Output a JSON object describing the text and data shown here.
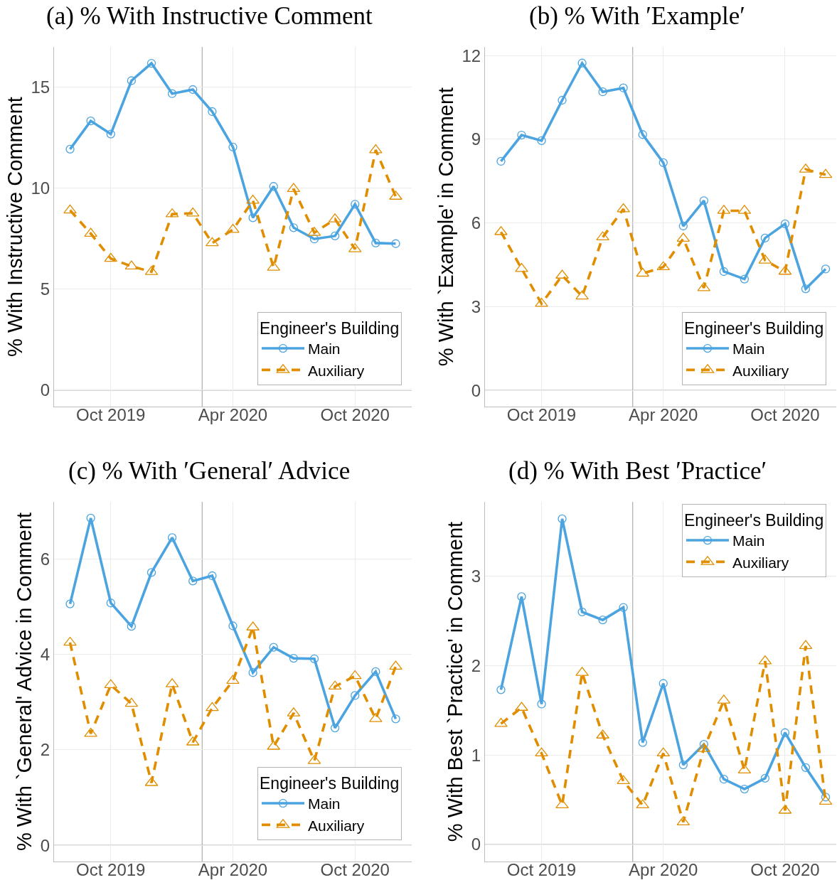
{
  "chart_data": [
    {
      "type": "line",
      "title": "(a) % With Instructive Comment",
      "ylabel": "% With Instructive Comment",
      "legend_title": "Engineer's Building",
      "legend": "bottom right",
      "grid": true,
      "x": [
        "2019-08",
        "2019-09",
        "2019-10",
        "2019-11",
        "2019-12",
        "2020-01",
        "2020-02",
        "2020-03",
        "2020-04",
        "2020-05",
        "2020-06",
        "2020-07",
        "2020-08",
        "2020-09",
        "2020-10",
        "2020-11",
        "2020-12"
      ],
      "series": [
        {
          "name": "Main",
          "color": "#4ba4e0",
          "marker": "circle",
          "line_style": "solid",
          "values": [
            11.92,
            13.32,
            12.67,
            15.31,
            16.17,
            14.67,
            14.87,
            13.78,
            12.03,
            8.53,
            10.08,
            8.04,
            7.48,
            7.63,
            9.2,
            7.28,
            7.25
          ]
        },
        {
          "name": "Auxiliary",
          "color": "#e08e00",
          "marker": "triangle",
          "line_style": "dashed",
          "values": [
            8.9,
            7.75,
            6.51,
            6.13,
            5.86,
            8.71,
            8.75,
            7.28,
            7.94,
            9.38,
            6.07,
            9.96,
            7.79,
            8.46,
            6.98,
            11.88,
            9.58
          ]
        }
      ],
      "xlim": [
        "2019-07-08",
        "2020-12-25"
      ],
      "xticks": [
        {
          "value": "2019-10",
          "label": "Oct 2019"
        },
        {
          "value": "2020-04",
          "label": "Apr 2020"
        },
        {
          "value": "2020-10",
          "label": "Oct 2020"
        }
      ],
      "ylim": [
        -0.81,
        16.98
      ],
      "yticks": [
        0,
        5,
        10,
        15
      ],
      "ref_lines": [
        {
          "axis": "x",
          "value": "2020-02-15",
          "color": "#b3b3b3"
        },
        {
          "axis": "y",
          "value": 0,
          "color": "#b3b3b3"
        }
      ]
    },
    {
      "type": "line",
      "title": "(b) % With ′Example′",
      "ylabel": "% With `Example' in Comment",
      "legend_title": "Engineer's Building",
      "legend": "bottom right",
      "grid": true,
      "x": [
        "2019-08",
        "2019-09",
        "2019-10",
        "2019-11",
        "2019-12",
        "2020-01",
        "2020-02",
        "2020-03",
        "2020-04",
        "2020-05",
        "2020-06",
        "2020-07",
        "2020-08",
        "2020-09",
        "2020-10",
        "2020-11",
        "2020-12"
      ],
      "series": [
        {
          "name": "Main",
          "color": "#4ba4e0",
          "marker": "circle",
          "line_style": "solid",
          "values": [
            8.21,
            9.15,
            8.95,
            10.4,
            11.73,
            10.7,
            10.84,
            9.17,
            8.16,
            5.89,
            6.8,
            4.26,
            3.99,
            5.46,
            5.97,
            3.64,
            4.35
          ]
        },
        {
          "name": "Auxiliary",
          "color": "#e08e00",
          "marker": "triangle",
          "line_style": "dashed",
          "values": [
            5.68,
            4.36,
            3.11,
            4.12,
            3.37,
            5.49,
            6.5,
            4.19,
            4.42,
            5.44,
            3.67,
            6.44,
            6.44,
            4.66,
            4.26,
            7.92,
            7.73
          ]
        }
      ],
      "xlim": [
        "2019-07-08",
        "2020-12-17"
      ],
      "xticks": [
        {
          "value": "2019-10",
          "label": "Oct 2019"
        },
        {
          "value": "2020-04",
          "label": "Apr 2020"
        },
        {
          "value": "2020-10",
          "label": "Oct 2020"
        }
      ],
      "ylim": [
        -0.58,
        12.31
      ],
      "yticks": [
        0,
        3,
        6,
        9,
        12
      ],
      "ref_lines": [
        {
          "axis": "x",
          "value": "2020-02-15",
          "color": "#b3b3b3"
        },
        {
          "axis": "y",
          "value": 0,
          "color": "#b3b3b3"
        }
      ]
    },
    {
      "type": "line",
      "title": "(c) % With ′General′ Advice",
      "ylabel": "% With `General' Advice in Comment",
      "legend_title": "Engineer's Building",
      "legend": "bottom right",
      "grid": true,
      "x": [
        "2019-08",
        "2019-09",
        "2019-10",
        "2019-11",
        "2019-12",
        "2020-01",
        "2020-02",
        "2020-03",
        "2020-04",
        "2020-05",
        "2020-06",
        "2020-07",
        "2020-08",
        "2020-09",
        "2020-10",
        "2020-11",
        "2020-12"
      ],
      "series": [
        {
          "name": "Main",
          "color": "#4ba4e0",
          "marker": "circle",
          "line_style": "solid",
          "values": [
            5.06,
            6.86,
            5.08,
            4.59,
            5.72,
            6.45,
            5.54,
            5.65,
            4.6,
            3.62,
            4.15,
            3.92,
            3.91,
            2.46,
            3.14,
            3.64,
            2.65
          ]
        },
        {
          "name": "Auxiliary",
          "color": "#e08e00",
          "marker": "triangle",
          "line_style": "dashed",
          "values": [
            4.25,
            2.34,
            3.36,
            2.97,
            1.31,
            3.38,
            2.16,
            2.88,
            3.45,
            4.57,
            2.07,
            2.77,
            1.77,
            3.33,
            3.55,
            2.65,
            3.75
          ]
        }
      ],
      "xlim": [
        "2019-07-08",
        "2020-12-25"
      ],
      "xticks": [
        {
          "value": "2019-10",
          "label": "Oct 2019"
        },
        {
          "value": "2020-04",
          "label": "Apr 2020"
        },
        {
          "value": "2020-10",
          "label": "Oct 2020"
        }
      ],
      "ylim": [
        -0.34,
        7.2
      ],
      "yticks": [
        0,
        2,
        4,
        6
      ],
      "ref_lines": [
        {
          "axis": "x",
          "value": "2020-02-15",
          "color": "#b3b3b3"
        },
        {
          "axis": "y",
          "value": 0,
          "color": "#b3b3b3"
        }
      ]
    },
    {
      "type": "line",
      "title": "(d) % With Best ′Practice′",
      "ylabel": "% With Best `Practice' in Comment",
      "legend_title": "Engineer's Building",
      "legend": "top right",
      "grid": true,
      "x": [
        "2019-08",
        "2019-09",
        "2019-10",
        "2019-11",
        "2019-12",
        "2020-01",
        "2020-02",
        "2020-03",
        "2020-04",
        "2020-05",
        "2020-06",
        "2020-07",
        "2020-08",
        "2020-09",
        "2020-10",
        "2020-11",
        "2020-12"
      ],
      "series": [
        {
          "name": "Main",
          "color": "#4ba4e0",
          "marker": "circle",
          "line_style": "solid",
          "values": [
            1.73,
            2.77,
            1.57,
            3.64,
            2.6,
            2.51,
            2.65,
            1.14,
            1.8,
            0.89,
            1.12,
            0.73,
            0.62,
            0.74,
            1.25,
            0.86,
            0.53
          ]
        },
        {
          "name": "Auxiliary",
          "color": "#e08e00",
          "marker": "triangle",
          "line_style": "dashed",
          "values": [
            1.35,
            1.53,
            1.02,
            0.44,
            1.92,
            1.22,
            0.71,
            0.44,
            1.02,
            0.25,
            1.07,
            1.61,
            0.83,
            2.05,
            0.38,
            2.22,
            0.48
          ]
        }
      ],
      "xlim": [
        "2019-07-08",
        "2020-12-17"
      ],
      "xticks": [
        {
          "value": "2019-10",
          "label": "Oct 2019"
        },
        {
          "value": "2020-04",
          "label": "Apr 2020"
        },
        {
          "value": "2020-10",
          "label": "Oct 2020"
        }
      ],
      "ylim": [
        -0.19,
        3.83
      ],
      "yticks": [
        0,
        1,
        2,
        3
      ],
      "ref_lines": [
        {
          "axis": "x",
          "value": "2020-02-15",
          "color": "#b3b3b3"
        },
        {
          "axis": "y",
          "value": 0,
          "color": "#b3b3b3"
        }
      ]
    }
  ]
}
